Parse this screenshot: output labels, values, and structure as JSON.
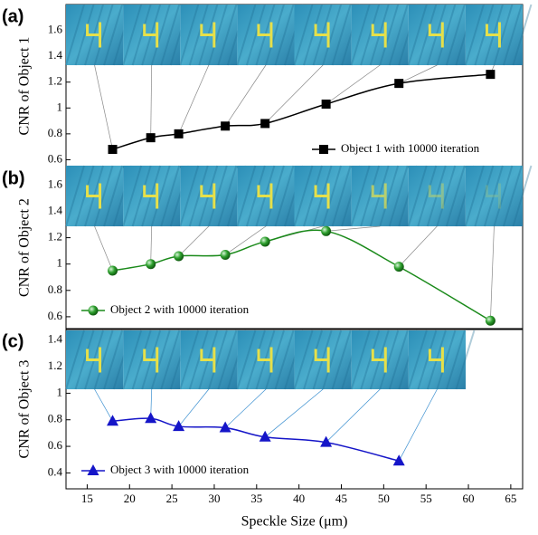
{
  "chart_data": [
    {
      "type": "line",
      "panel_label": "(a)",
      "ylabel": "CNR of Object 1",
      "x": [
        18,
        22.5,
        25.8,
        31.3,
        36,
        43.2,
        51.8,
        62.6
      ],
      "series": [
        {
          "name": "Object 1 with 10000 iteration",
          "color": "#000000",
          "marker": "square",
          "values": [
            0.68,
            0.77,
            0.8,
            0.86,
            0.88,
            1.03,
            1.19,
            1.26
          ]
        }
      ],
      "xlim": [
        12.5,
        66.4
      ],
      "ylim": [
        0.54,
        1.8
      ],
      "yticks": [
        0.6,
        0.8,
        1.0,
        1.2,
        1.4,
        1.6
      ],
      "legend": "lower right"
    },
    {
      "type": "line",
      "panel_label": "(b)",
      "ylabel": "CNR of Object 2",
      "x": [
        18,
        22.5,
        25.8,
        31.3,
        36,
        43.2,
        51.8,
        62.6
      ],
      "series": [
        {
          "name": "Object 2 with 10000 iteration",
          "color": "#1a8a1a",
          "marker": "sphere",
          "values": [
            0.95,
            1.0,
            1.06,
            1.07,
            1.17,
            1.25,
            0.98,
            0.57
          ]
        }
      ],
      "xlim": [
        12.5,
        66.4
      ],
      "ylim": [
        0.51,
        1.74
      ],
      "yticks": [
        0.6,
        0.8,
        1.0,
        1.2,
        1.4,
        1.6
      ],
      "legend": "lower left"
    },
    {
      "type": "line",
      "panel_label": "(c)",
      "ylabel": "CNR of Object 3",
      "xlabel": "Speckle Size (μm)",
      "x": [
        18,
        22.5,
        25.8,
        31.3,
        36,
        43.2,
        51.8
      ],
      "series": [
        {
          "name": "Object 3 with 10000 iteration",
          "color": "#1515c8",
          "marker": "triangle",
          "values": [
            0.79,
            0.81,
            0.75,
            0.74,
            0.67,
            0.63,
            0.49
          ]
        }
      ],
      "xlim": [
        12.5,
        66.4
      ],
      "xticks": [
        15,
        20,
        25,
        30,
        35,
        40,
        45,
        50,
        55,
        60,
        65
      ],
      "ylim": [
        0.28,
        1.48
      ],
      "yticks": [
        0.4,
        0.6,
        0.8,
        1.0,
        1.2,
        1.4
      ],
      "legend": "lower left"
    }
  ]
}
